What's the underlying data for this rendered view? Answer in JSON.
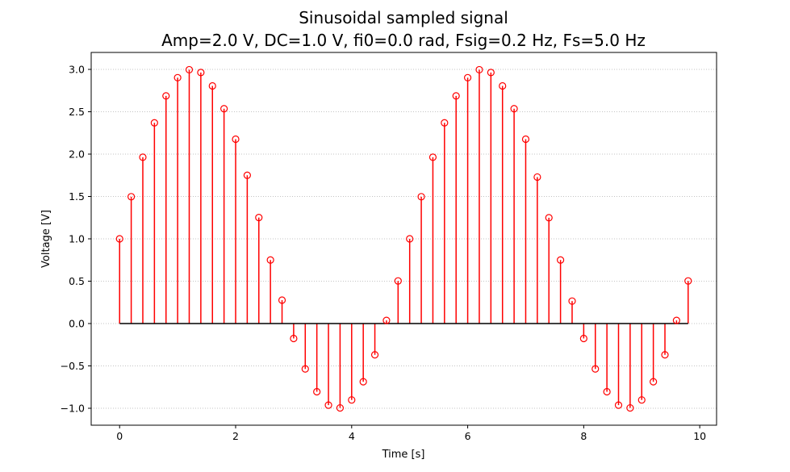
{
  "chart_data": {
    "type": "stem",
    "title": "Sinusoidal sampled signal",
    "subtitle": "Amp=2.0 V, DC=1.0 V, fi0=0.0 rad, Fsig=0.2 Hz, Fs=5.0 Hz",
    "xlabel": "Time [s]",
    "ylabel": "Voltage [V]",
    "xlim": [
      -0.49,
      10.29
    ],
    "ylim": [
      -1.2,
      3.2
    ],
    "xticks": [
      0,
      2,
      4,
      6,
      8,
      10
    ],
    "yticks": [
      -1.0,
      -0.5,
      0.0,
      0.5,
      1.0,
      1.5,
      2.0,
      2.5,
      3.0
    ],
    "xtick_labels": [
      "0",
      "2",
      "4",
      "6",
      "8",
      "10"
    ],
    "ytick_labels": [
      "−1.0",
      "−0.5",
      "0.0",
      "0.5",
      "1.0",
      "1.5",
      "2.0",
      "2.5",
      "3.0"
    ],
    "grid": "y-dotted",
    "marker": "open-circle",
    "stem_color": "#ff0000",
    "baseline_color": "#000000",
    "grid_color": "#b0b0b0",
    "x": [
      0.0,
      0.2,
      0.4,
      0.6,
      0.8,
      1.0,
      1.2,
      1.4,
      1.6,
      1.8,
      2.0,
      2.2,
      2.4,
      2.6,
      2.8,
      3.0,
      3.2,
      3.4,
      3.6,
      3.8,
      4.0,
      4.2,
      4.4,
      4.6,
      4.8,
      5.0,
      5.2,
      5.4,
      5.6,
      5.8,
      6.0,
      6.2,
      6.4,
      6.6,
      6.8,
      7.0,
      7.2,
      7.4,
      7.6,
      7.8,
      8.0,
      8.2,
      8.4,
      8.6,
      8.8,
      9.0,
      9.2,
      9.4,
      9.6,
      9.8
    ],
    "y": [
      1.0,
      1.497,
      1.963,
      2.369,
      2.687,
      2.902,
      2.996,
      2.963,
      2.805,
      2.536,
      2.176,
      1.75,
      1.251,
      0.75,
      0.276,
      -0.176,
      -0.536,
      -0.805,
      -0.963,
      -0.996,
      -0.902,
      -0.687,
      -0.369,
      0.037,
      0.503,
      1.0,
      1.497,
      1.963,
      2.369,
      2.687,
      2.902,
      2.996,
      2.963,
      2.805,
      2.536,
      2.176,
      1.729,
      1.249,
      0.75,
      0.265,
      -0.176,
      -0.536,
      -0.805,
      -0.963,
      -0.996,
      -0.902,
      -0.687,
      -0.369,
      0.037,
      0.503
    ]
  }
}
